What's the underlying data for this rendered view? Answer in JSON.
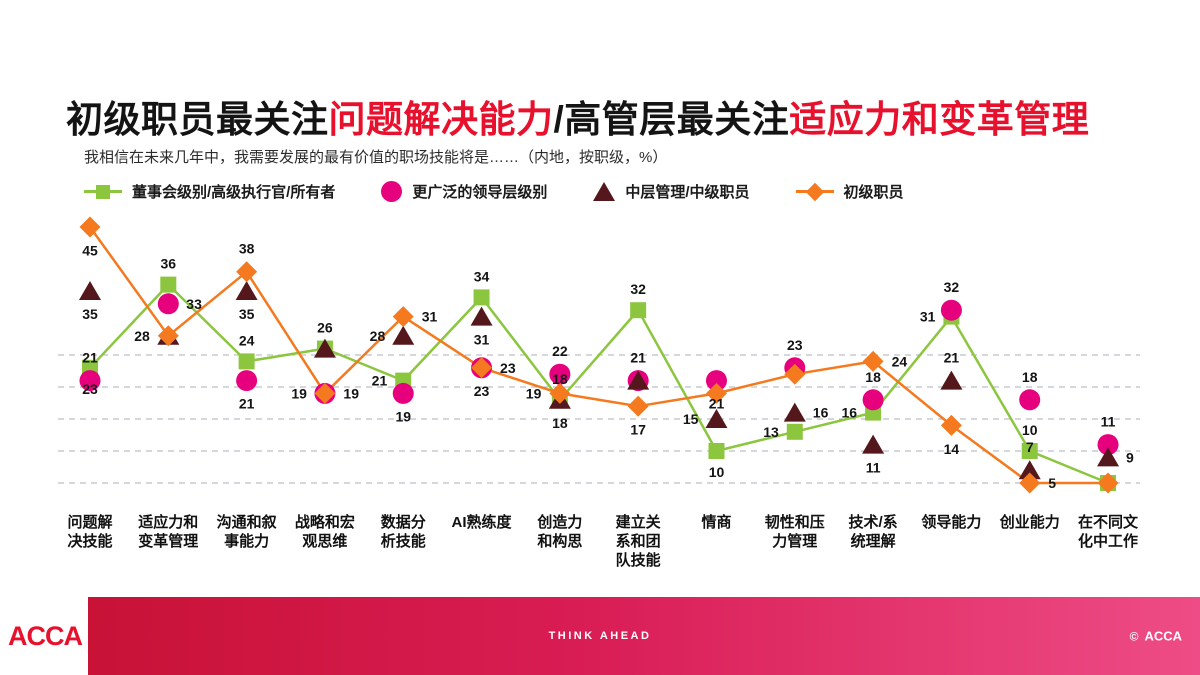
{
  "title": {
    "segments": [
      {
        "text": "初级职员最关注",
        "color": "#141414"
      },
      {
        "text": "问题解决能力",
        "color": "#E8112D"
      },
      {
        "text": "/高管层最关注",
        "color": "#141414"
      },
      {
        "text": "适应力和变革管理",
        "color": "#E8112D"
      }
    ]
  },
  "subtitle": "我相信在未来几年中，我需要发展的最有价值的职场技能将是……（内地，按职级，%）",
  "chart_data": {
    "type": "line",
    "title": "初级职员最关注问题解决能力/高管层最关注适应力和变革管理",
    "unit": "%",
    "ylim": [
      0,
      50
    ],
    "gridlines": [
      5,
      10,
      15,
      20,
      25
    ],
    "grid_style": "dashed-horizontal",
    "legend_position": "top-left",
    "categories": [
      "问题解决技能",
      "适应力和变革管理",
      "沟通和叙事能力",
      "战略和宏观思维",
      "数据分析技能",
      "AI熟练度",
      "创造力和构思",
      "建立关系和团队技能",
      "情商",
      "韧性和压力管理",
      "技术/系统理解",
      "领导能力",
      "创业能力",
      "在不同文化中工作"
    ],
    "category_label_lines": [
      [
        "问题解",
        "决技能"
      ],
      [
        "适应力和",
        "变革管理"
      ],
      [
        "沟通和叙",
        "事能力"
      ],
      [
        "战略和宏",
        "观思维"
      ],
      [
        "数据分",
        "析技能"
      ],
      [
        "AI熟练度"
      ],
      [
        "创造力",
        "和构思"
      ],
      [
        "建立关",
        "系和团",
        "队技能"
      ],
      [
        "情商"
      ],
      [
        "韧性和压",
        "力管理"
      ],
      [
        "技术/系",
        "统理解"
      ],
      [
        "领导能力"
      ],
      [
        "创业能力"
      ],
      [
        "在不同文",
        "化中工作"
      ]
    ],
    "series": [
      {
        "name": "董事会级别/高级执行官/所有者",
        "marker": "square",
        "color": "#8CC63F",
        "line": true,
        "values": [
          23,
          36,
          24,
          26,
          21,
          34,
          18,
          32,
          10,
          13,
          16,
          31,
          10,
          5
        ],
        "label_pos": [
          "b",
          "a",
          "a",
          "a",
          "l",
          "a",
          "a",
          "a",
          "b",
          "l",
          "l",
          "l",
          "a",
          null
        ]
      },
      {
        "name": "更广泛的领导层级别",
        "marker": "circle",
        "color": "#E6007E",
        "line": false,
        "values": [
          21,
          33,
          21,
          19,
          19,
          23,
          22,
          21,
          21,
          23,
          18,
          32,
          18,
          11
        ],
        "label_pos": [
          "a",
          "r",
          "b",
          "l",
          "b",
          "b",
          "a",
          "a",
          "b",
          "a",
          "a",
          "a",
          "a",
          "a"
        ]
      },
      {
        "name": "中层管理/中级职员",
        "marker": "triangle",
        "color": "#54181C",
        "line": false,
        "values": [
          35,
          28,
          35,
          26,
          28,
          31,
          18,
          21,
          15,
          16,
          11,
          21,
          7,
          9
        ],
        "label_pos": [
          "b",
          null,
          "b",
          null,
          "l",
          "b",
          "b",
          null,
          "l",
          "r",
          "b",
          "a",
          "a",
          "r"
        ]
      },
      {
        "name": "初级职员",
        "marker": "diamond",
        "color": "#F4791F",
        "line": true,
        "values": [
          45,
          28,
          38,
          19,
          31,
          23,
          19,
          17,
          19,
          22,
          24,
          14,
          5,
          5
        ],
        "label_pos": [
          "b",
          "l",
          "a",
          "r",
          "r",
          "r",
          "l",
          "b",
          null,
          null,
          "r",
          "b",
          "r",
          null
        ]
      }
    ]
  },
  "footer": {
    "logo": "ACCA",
    "tagline": "THINK AHEAD",
    "copyright": "©",
    "brand": "ACCA"
  }
}
